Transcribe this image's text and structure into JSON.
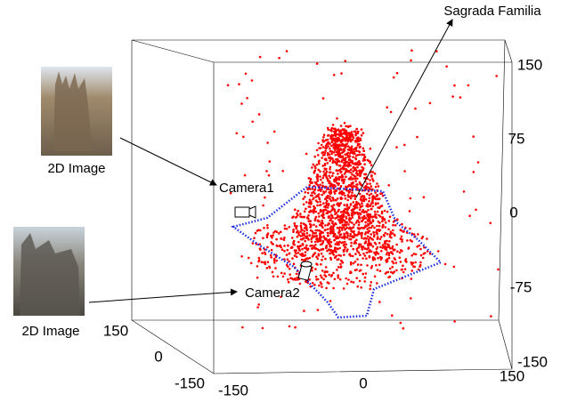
{
  "annotations": {
    "target": "Sagrada Familia",
    "camera1": "Camera1",
    "camera2": "Camera2",
    "image1_caption": "2D Image",
    "image2_caption": "2D Image"
  },
  "axes": {
    "z_ticks": [
      "150",
      "75",
      "0",
      "-75",
      "-150"
    ],
    "x_ticks": [
      "-150",
      "0",
      "150"
    ],
    "y_ticks": [
      "150",
      "0",
      "-150"
    ]
  }
}
